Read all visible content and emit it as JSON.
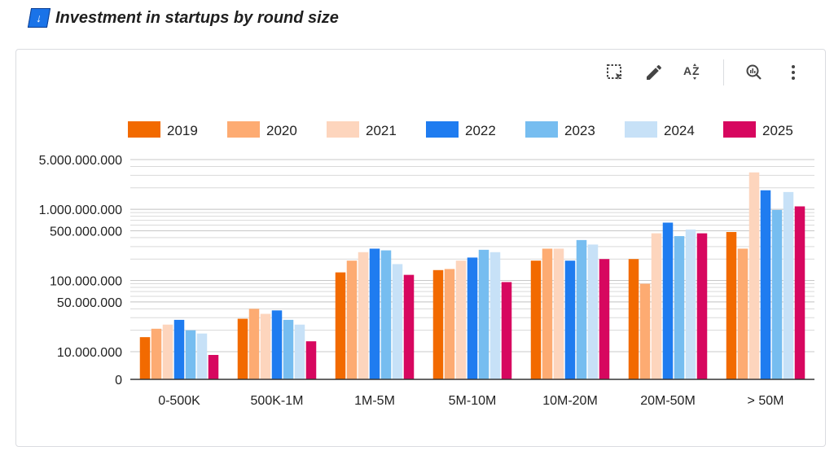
{
  "header": {
    "title": "Investment in startups by round size",
    "title_icon": "sort-descending-icon"
  },
  "toolbar": {
    "items": [
      {
        "name": "select-area-icon"
      },
      {
        "name": "edit-pencil-icon"
      },
      {
        "name": "sort-az-icon"
      },
      {
        "name": "explore-chart-icon"
      },
      {
        "name": "more-vert-icon"
      }
    ]
  },
  "chart_data": {
    "type": "bar",
    "yscale": "log",
    "ylim": [
      0,
      5000000000
    ],
    "yticks": [
      "5.000.000.000",
      "1.000.000.000",
      "500.000.000",
      "100.000.000",
      "50.000.000",
      "10.000.000",
      "0"
    ],
    "ytick_values": [
      5000000000,
      1000000000,
      500000000,
      100000000,
      50000000,
      10000000,
      0
    ],
    "categories": [
      "0-500K",
      "500K-1M",
      "1M-5M",
      "5M-10M",
      "10M-20M",
      "20M-50M",
      "> 50M"
    ],
    "legend_position": "top",
    "grid": true,
    "series": [
      {
        "name": "2019",
        "color": "#f26a00",
        "values": [
          16000000,
          29000000,
          130000000,
          140000000,
          190000000,
          200000000,
          480000000
        ]
      },
      {
        "name": "2020",
        "color": "#fdab72",
        "values": [
          21000000,
          40000000,
          190000000,
          145000000,
          280000000,
          90000000,
          280000000
        ]
      },
      {
        "name": "2021",
        "color": "#fdd5bd",
        "values": [
          24000000,
          34000000,
          250000000,
          190000000,
          280000000,
          460000000,
          3300000000
        ]
      },
      {
        "name": "2022",
        "color": "#1f7cf0",
        "values": [
          28000000,
          38000000,
          280000000,
          210000000,
          190000000,
          650000000,
          1850000000
        ]
      },
      {
        "name": "2023",
        "color": "#76bdf0",
        "values": [
          20000000,
          28000000,
          265000000,
          270000000,
          370000000,
          420000000,
          980000000
        ]
      },
      {
        "name": "2024",
        "color": "#c7e1f7",
        "values": [
          18000000,
          24000000,
          170000000,
          250000000,
          320000000,
          520000000,
          1750000000
        ]
      },
      {
        "name": "2025",
        "color": "#d7075f",
        "values": [
          9000000,
          14000000,
          120000000,
          95000000,
          200000000,
          460000000,
          1100000000
        ]
      }
    ]
  }
}
